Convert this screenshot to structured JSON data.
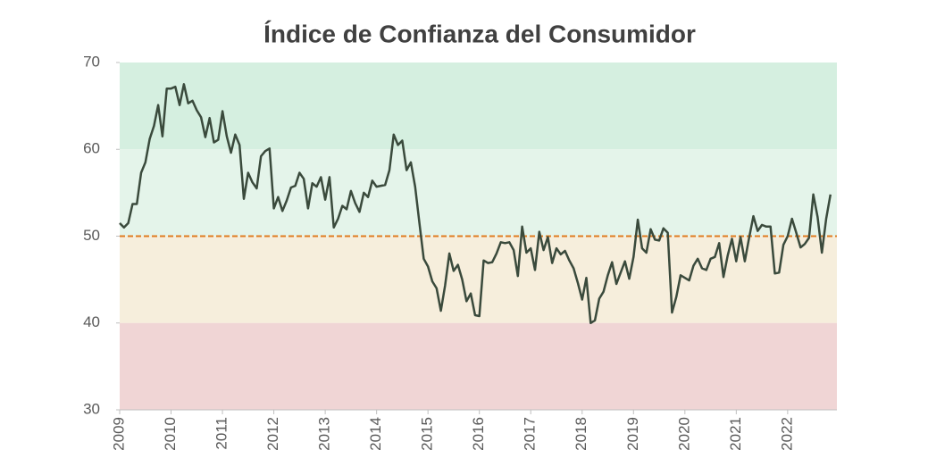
{
  "chart_data": {
    "type": "line",
    "title": "Índice de Confianza del Consumidor",
    "categories": [
      "2009",
      null,
      null,
      null,
      null,
      null,
      null,
      null,
      null,
      null,
      null,
      null,
      "2010",
      null,
      null,
      null,
      null,
      null,
      null,
      null,
      null,
      null,
      null,
      null,
      "2011",
      null,
      null,
      null,
      null,
      null,
      null,
      null,
      null,
      null,
      null,
      null,
      "2012",
      null,
      null,
      null,
      null,
      null,
      null,
      null,
      null,
      null,
      null,
      null,
      "2013",
      null,
      null,
      null,
      null,
      null,
      null,
      null,
      null,
      null,
      null,
      null,
      "2014",
      null,
      null,
      null,
      null,
      null,
      null,
      null,
      null,
      null,
      null,
      null,
      "2015",
      null,
      null,
      null,
      null,
      null,
      null,
      null,
      null,
      null,
      null,
      null,
      "2016",
      null,
      null,
      null,
      null,
      null,
      null,
      null,
      null,
      null,
      null,
      null,
      "2017",
      null,
      null,
      null,
      null,
      null,
      null,
      null,
      null,
      null,
      null,
      null,
      "2018",
      null,
      null,
      null,
      null,
      null,
      null,
      null,
      null,
      null,
      null,
      null,
      "2019",
      null,
      null,
      null,
      null,
      null,
      null,
      null,
      null,
      null,
      null,
      null,
      "2020",
      null,
      null,
      null,
      null,
      null,
      null,
      null,
      null,
      null,
      null,
      null,
      "2021",
      null,
      null,
      null,
      null,
      null,
      null,
      null,
      null,
      null,
      null,
      null,
      "2022",
      null,
      null,
      null,
      null,
      null,
      null,
      null,
      null,
      null,
      null
    ],
    "series": [
      {
        "color": "#3a4a3c",
        "values": [
          51.5,
          51,
          51.5,
          53.7,
          53.7,
          57.3,
          58.5,
          61.2,
          62.7,
          65.1,
          61.5,
          67,
          67,
          67.2,
          65.1,
          67.5,
          65.3,
          65.6,
          64.5,
          63.7,
          61.4,
          63.6,
          60.8,
          61.1,
          64.4,
          61.5,
          59.6,
          61.7,
          60.5,
          54.3,
          57.3,
          56.2,
          55.5,
          59.2,
          59.8,
          60.1,
          53.2,
          54.5,
          52.9,
          54.1,
          55.6,
          55.8,
          57.3,
          56.6,
          53.2,
          56.1,
          55.7,
          56.8,
          54.2,
          56.8,
          51,
          52,
          53.5,
          53.1,
          55.2,
          53.8,
          52.8,
          55,
          54.5,
          56.4,
          55.7,
          55.8,
          55.9,
          57.6,
          61.7,
          60.5,
          61,
          57.6,
          58.5,
          55.7,
          51.5,
          47.4,
          46.5,
          44.8,
          44,
          41.4,
          44.3,
          48,
          46,
          46.7,
          45,
          42.5,
          43.4,
          40.9,
          40.8,
          47.2,
          46.9,
          47,
          48,
          49.3,
          49.2,
          49.3,
          48.4,
          45.4,
          51.1,
          48.1,
          48.6,
          46.1,
          50.5,
          48.4,
          49.9,
          46.9,
          48.6,
          47.9,
          48.3,
          47.2,
          46.3,
          44.6,
          42.7,
          45.2,
          40,
          40.3,
          42.8,
          43.6,
          45.5,
          47,
          44.5,
          45.8,
          47.1,
          45.1,
          47.6,
          51.9,
          48.6,
          48.1,
          50.8,
          49.6,
          49.5,
          50.9,
          50.4,
          41.2,
          43,
          45.5,
          45.2,
          44.9,
          46.6,
          47.4,
          46.3,
          46.1,
          47.4,
          47.6,
          49.2,
          45.3,
          47.8,
          49.7,
          47.1,
          49.9,
          47.1,
          49.8,
          52.3,
          50.6,
          51.3,
          51.1,
          51.1,
          45.7,
          45.8,
          49,
          50,
          52,
          50.4,
          48.7,
          49.1,
          49.8,
          54.8,
          52.2,
          48.1,
          52,
          54.8
        ]
      }
    ],
    "ylim": [
      30,
      70
    ],
    "yticks": [
      30,
      40,
      50,
      60,
      70
    ],
    "bands": [
      {
        "from": 60,
        "to": 70,
        "color": "#d5efe0"
      },
      {
        "from": 50,
        "to": 60,
        "color": "#e4f4ea"
      },
      {
        "from": 40,
        "to": 50,
        "color": "#f6eedc"
      },
      {
        "from": 30,
        "to": 40,
        "color": "#f0d5d5"
      }
    ],
    "reference_line": {
      "value": 50,
      "color": "#e07b20"
    }
  }
}
